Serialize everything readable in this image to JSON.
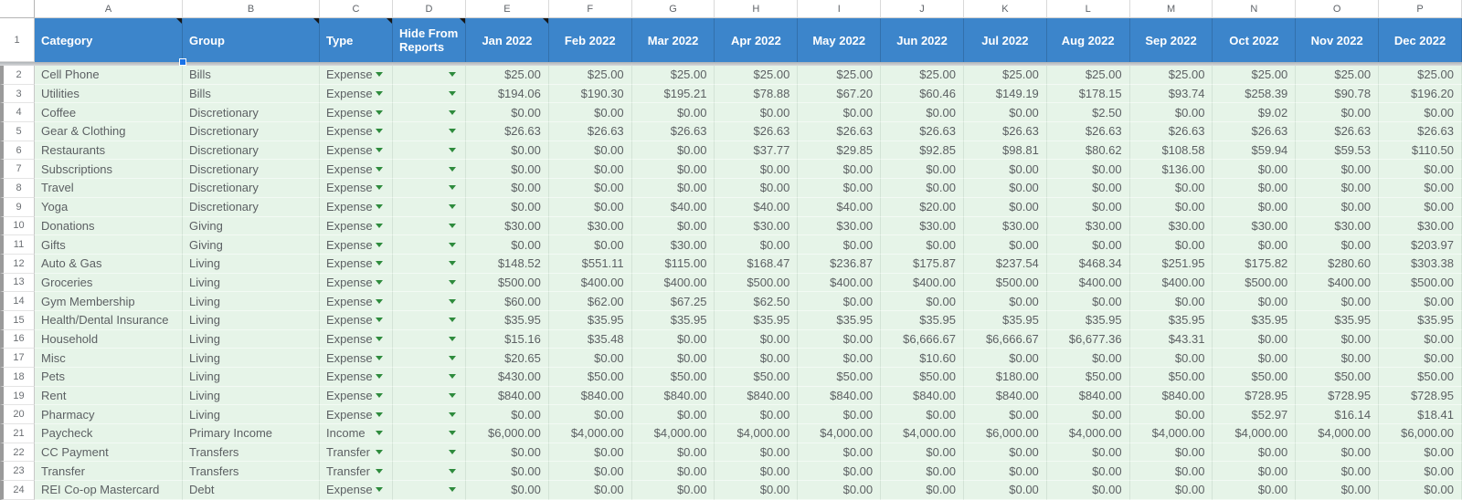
{
  "sheet": {
    "column_letters": [
      "A",
      "B",
      "C",
      "D",
      "E",
      "F",
      "G",
      "H",
      "I",
      "J",
      "K",
      "L",
      "M",
      "N",
      "O",
      "P"
    ],
    "header": {
      "row_number": "1",
      "category": "Category",
      "group": "Group",
      "type": "Type",
      "hide": "Hide From Reports",
      "months": [
        "Jan 2022",
        "Feb 2022",
        "Mar 2022",
        "Apr 2022",
        "May 2022",
        "Jun 2022",
        "Jul 2022",
        "Aug 2022",
        "Sep 2022",
        "Oct 2022",
        "Nov 2022",
        "Dec 2022"
      ]
    },
    "colors": {
      "header_bg": "#3c85cb",
      "cell_bg": "#e6f4e8",
      "dropdown_arrow": "#2e8b3d",
      "fill_handle": "#1a73e8"
    },
    "rows": [
      {
        "n": "2",
        "category": "Cell Phone",
        "group": "Bills",
        "type": "Expense",
        "hide": "",
        "values": [
          "$25.00",
          "$25.00",
          "$25.00",
          "$25.00",
          "$25.00",
          "$25.00",
          "$25.00",
          "$25.00",
          "$25.00",
          "$25.00",
          "$25.00",
          "$25.00"
        ]
      },
      {
        "n": "3",
        "category": "Utilities",
        "group": "Bills",
        "type": "Expense",
        "hide": "",
        "values": [
          "$194.06",
          "$190.30",
          "$195.21",
          "$78.88",
          "$67.20",
          "$60.46",
          "$149.19",
          "$178.15",
          "$93.74",
          "$258.39",
          "$90.78",
          "$196.20"
        ]
      },
      {
        "n": "4",
        "category": "Coffee",
        "group": "Discretionary",
        "type": "Expense",
        "hide": "",
        "values": [
          "$0.00",
          "$0.00",
          "$0.00",
          "$0.00",
          "$0.00",
          "$0.00",
          "$0.00",
          "$2.50",
          "$0.00",
          "$9.02",
          "$0.00",
          "$0.00"
        ]
      },
      {
        "n": "5",
        "category": "Gear & Clothing",
        "group": "Discretionary",
        "type": "Expense",
        "hide": "",
        "values": [
          "$26.63",
          "$26.63",
          "$26.63",
          "$26.63",
          "$26.63",
          "$26.63",
          "$26.63",
          "$26.63",
          "$26.63",
          "$26.63",
          "$26.63",
          "$26.63"
        ]
      },
      {
        "n": "6",
        "category": "Restaurants",
        "group": "Discretionary",
        "type": "Expense",
        "hide": "",
        "values": [
          "$0.00",
          "$0.00",
          "$0.00",
          "$37.77",
          "$29.85",
          "$92.85",
          "$98.81",
          "$80.62",
          "$108.58",
          "$59.94",
          "$59.53",
          "$110.50"
        ]
      },
      {
        "n": "7",
        "category": "Subscriptions",
        "group": "Discretionary",
        "type": "Expense",
        "hide": "",
        "values": [
          "$0.00",
          "$0.00",
          "$0.00",
          "$0.00",
          "$0.00",
          "$0.00",
          "$0.00",
          "$0.00",
          "$136.00",
          "$0.00",
          "$0.00",
          "$0.00"
        ]
      },
      {
        "n": "8",
        "category": "Travel",
        "group": "Discretionary",
        "type": "Expense",
        "hide": "",
        "values": [
          "$0.00",
          "$0.00",
          "$0.00",
          "$0.00",
          "$0.00",
          "$0.00",
          "$0.00",
          "$0.00",
          "$0.00",
          "$0.00",
          "$0.00",
          "$0.00"
        ]
      },
      {
        "n": "9",
        "category": "Yoga",
        "group": "Discretionary",
        "type": "Expense",
        "hide": "",
        "values": [
          "$0.00",
          "$0.00",
          "$40.00",
          "$40.00",
          "$40.00",
          "$20.00",
          "$0.00",
          "$0.00",
          "$0.00",
          "$0.00",
          "$0.00",
          "$0.00"
        ]
      },
      {
        "n": "10",
        "category": "Donations",
        "group": "Giving",
        "type": "Expense",
        "hide": "",
        "values": [
          "$30.00",
          "$30.00",
          "$0.00",
          "$30.00",
          "$30.00",
          "$30.00",
          "$30.00",
          "$30.00",
          "$30.00",
          "$30.00",
          "$30.00",
          "$30.00"
        ]
      },
      {
        "n": "11",
        "category": "Gifts",
        "group": "Giving",
        "type": "Expense",
        "hide": "",
        "values": [
          "$0.00",
          "$0.00",
          "$30.00",
          "$0.00",
          "$0.00",
          "$0.00",
          "$0.00",
          "$0.00",
          "$0.00",
          "$0.00",
          "$0.00",
          "$203.97"
        ]
      },
      {
        "n": "12",
        "category": "Auto & Gas",
        "group": "Living",
        "type": "Expense",
        "hide": "",
        "values": [
          "$148.52",
          "$551.11",
          "$115.00",
          "$168.47",
          "$236.87",
          "$175.87",
          "$237.54",
          "$468.34",
          "$251.95",
          "$175.82",
          "$280.60",
          "$303.38"
        ]
      },
      {
        "n": "13",
        "category": "Groceries",
        "group": "Living",
        "type": "Expense",
        "hide": "",
        "values": [
          "$500.00",
          "$400.00",
          "$400.00",
          "$500.00",
          "$400.00",
          "$400.00",
          "$500.00",
          "$400.00",
          "$400.00",
          "$500.00",
          "$400.00",
          "$500.00"
        ]
      },
      {
        "n": "14",
        "category": "Gym Membership",
        "group": "Living",
        "type": "Expense",
        "hide": "",
        "values": [
          "$60.00",
          "$62.00",
          "$67.25",
          "$62.50",
          "$0.00",
          "$0.00",
          "$0.00",
          "$0.00",
          "$0.00",
          "$0.00",
          "$0.00",
          "$0.00"
        ]
      },
      {
        "n": "15",
        "category": "Health/Dental Insurance",
        "group": "Living",
        "type": "Expense",
        "hide": "",
        "values": [
          "$35.95",
          "$35.95",
          "$35.95",
          "$35.95",
          "$35.95",
          "$35.95",
          "$35.95",
          "$35.95",
          "$35.95",
          "$35.95",
          "$35.95",
          "$35.95"
        ]
      },
      {
        "n": "16",
        "category": "Household",
        "group": "Living",
        "type": "Expense",
        "hide": "",
        "values": [
          "$15.16",
          "$35.48",
          "$0.00",
          "$0.00",
          "$0.00",
          "$6,666.67",
          "$6,666.67",
          "$6,677.36",
          "$43.31",
          "$0.00",
          "$0.00",
          "$0.00"
        ]
      },
      {
        "n": "17",
        "category": "Misc",
        "group": "Living",
        "type": "Expense",
        "hide": "",
        "values": [
          "$20.65",
          "$0.00",
          "$0.00",
          "$0.00",
          "$0.00",
          "$10.60",
          "$0.00",
          "$0.00",
          "$0.00",
          "$0.00",
          "$0.00",
          "$0.00"
        ]
      },
      {
        "n": "18",
        "category": "Pets",
        "group": "Living",
        "type": "Expense",
        "hide": "",
        "values": [
          "$430.00",
          "$50.00",
          "$50.00",
          "$50.00",
          "$50.00",
          "$50.00",
          "$180.00",
          "$50.00",
          "$50.00",
          "$50.00",
          "$50.00",
          "$50.00"
        ]
      },
      {
        "n": "19",
        "category": "Rent",
        "group": "Living",
        "type": "Expense",
        "hide": "",
        "values": [
          "$840.00",
          "$840.00",
          "$840.00",
          "$840.00",
          "$840.00",
          "$840.00",
          "$840.00",
          "$840.00",
          "$840.00",
          "$728.95",
          "$728.95",
          "$728.95"
        ]
      },
      {
        "n": "20",
        "category": "Pharmacy",
        "group": "Living",
        "type": "Expense",
        "hide": "",
        "values": [
          "$0.00",
          "$0.00",
          "$0.00",
          "$0.00",
          "$0.00",
          "$0.00",
          "$0.00",
          "$0.00",
          "$0.00",
          "$52.97",
          "$16.14",
          "$18.41"
        ]
      },
      {
        "n": "21",
        "category": "Paycheck",
        "group": "Primary Income",
        "type": "Income",
        "hide": "",
        "values": [
          "$6,000.00",
          "$4,000.00",
          "$4,000.00",
          "$4,000.00",
          "$4,000.00",
          "$4,000.00",
          "$6,000.00",
          "$4,000.00",
          "$4,000.00",
          "$4,000.00",
          "$4,000.00",
          "$6,000.00"
        ]
      },
      {
        "n": "22",
        "category": "CC Payment",
        "group": "Transfers",
        "type": "Transfer",
        "hide": "",
        "values": [
          "$0.00",
          "$0.00",
          "$0.00",
          "$0.00",
          "$0.00",
          "$0.00",
          "$0.00",
          "$0.00",
          "$0.00",
          "$0.00",
          "$0.00",
          "$0.00"
        ]
      },
      {
        "n": "23",
        "category": "Transfer",
        "group": "Transfers",
        "type": "Transfer",
        "hide": "",
        "values": [
          "$0.00",
          "$0.00",
          "$0.00",
          "$0.00",
          "$0.00",
          "$0.00",
          "$0.00",
          "$0.00",
          "$0.00",
          "$0.00",
          "$0.00",
          "$0.00"
        ]
      },
      {
        "n": "24",
        "category": "REI Co-op Mastercard",
        "group": "Debt",
        "type": "Expense",
        "hide": "",
        "values": [
          "$0.00",
          "$0.00",
          "$0.00",
          "$0.00",
          "$0.00",
          "$0.00",
          "$0.00",
          "$0.00",
          "$0.00",
          "$0.00",
          "$0.00",
          "$0.00"
        ]
      }
    ]
  }
}
